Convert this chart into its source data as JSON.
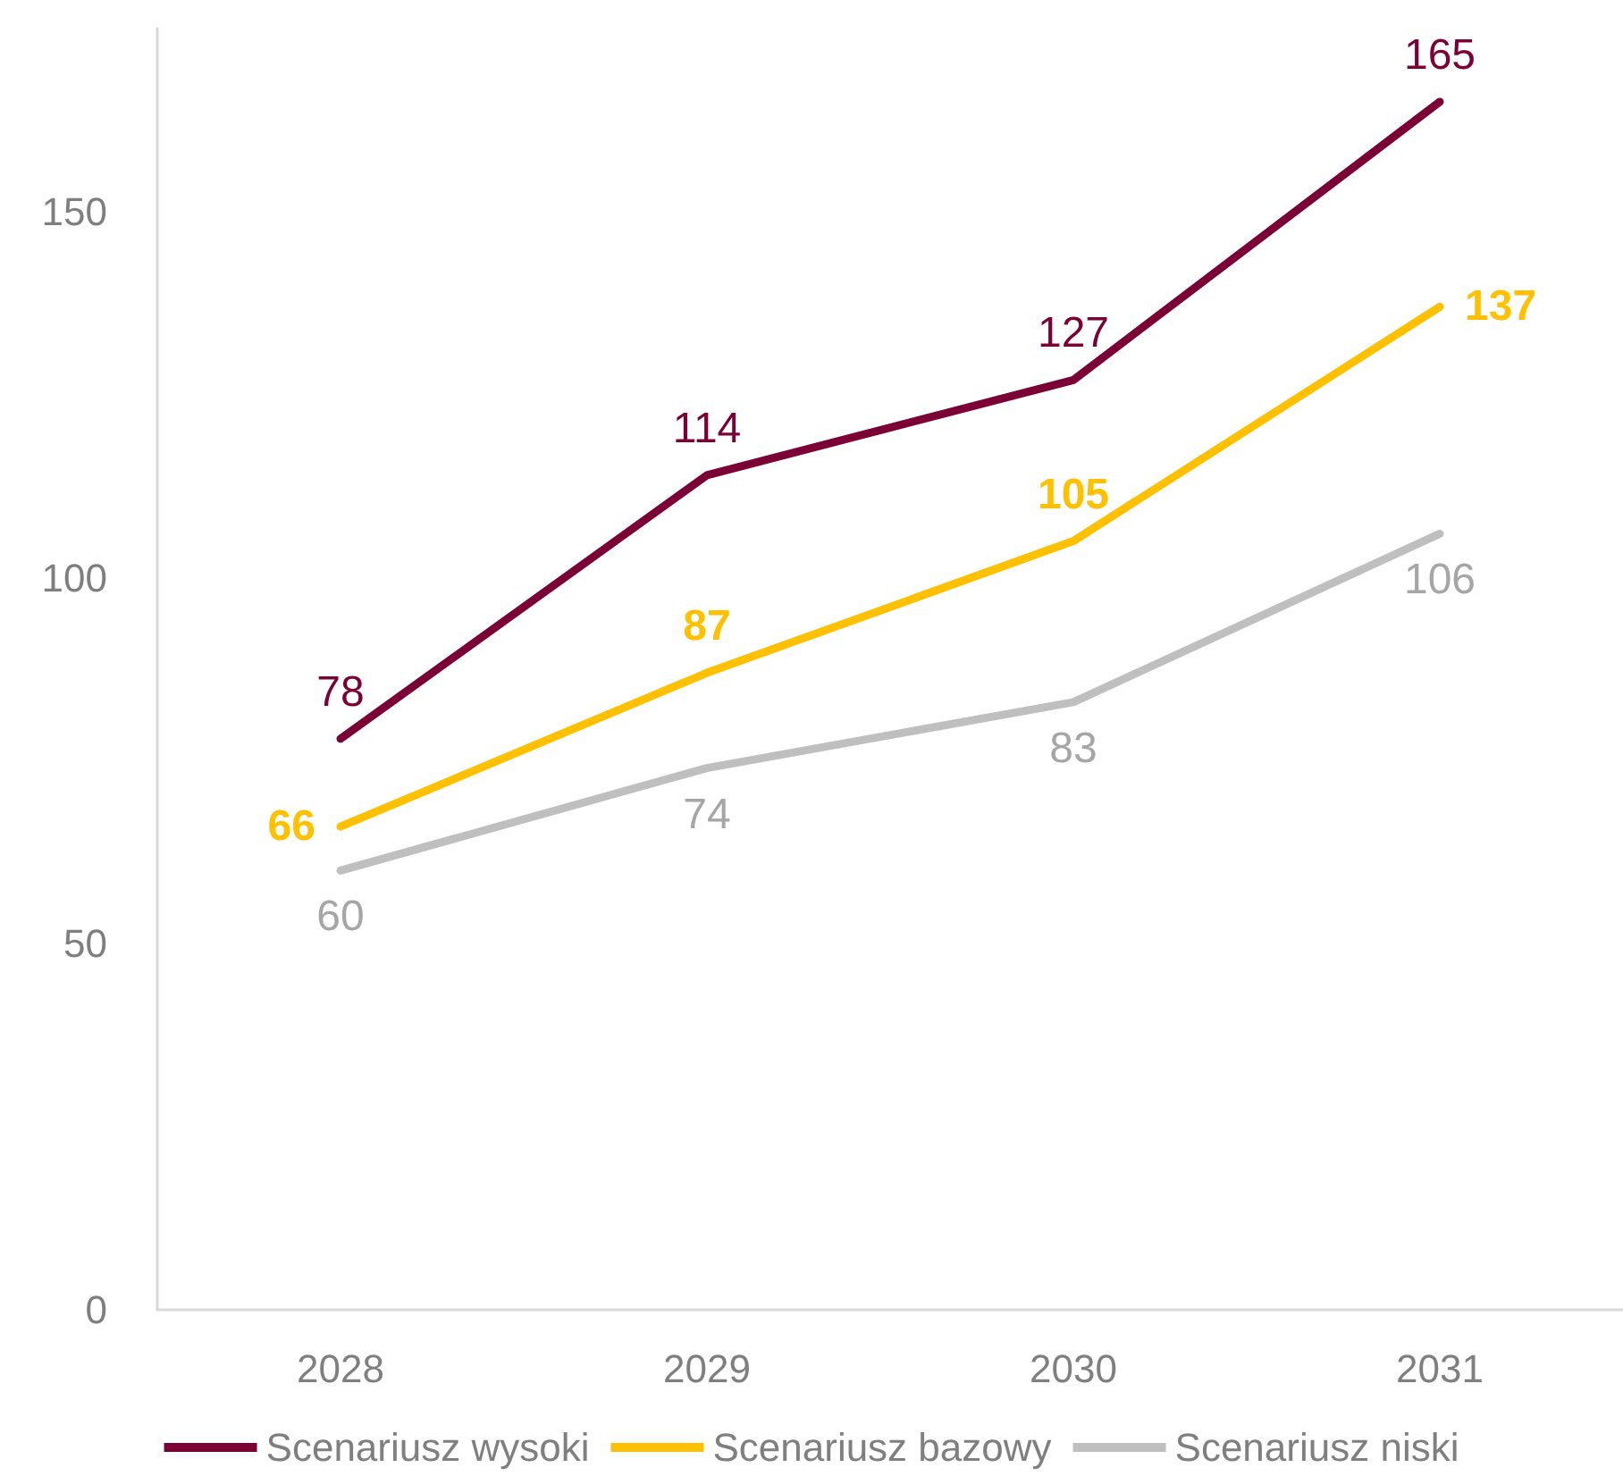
{
  "chart_data": {
    "type": "line",
    "categories": [
      "2028",
      "2029",
      "2030",
      "2031"
    ],
    "series": [
      {
        "name": "Scenariusz wysoki",
        "color": "#7b0035",
        "values": [
          78,
          114,
          127,
          165
        ]
      },
      {
        "name": "Scenariusz bazowy",
        "color": "#ffc000",
        "values": [
          66,
          87,
          105,
          137
        ]
      },
      {
        "name": "Scenariusz niski",
        "color": "#bfbfbf",
        "values": [
          60,
          74,
          83,
          106
        ]
      }
    ],
    "ylim": [
      0,
      175
    ],
    "yticks": [
      0,
      50,
      100,
      150
    ],
    "grid": false,
    "legend": "bottom",
    "data_labels": true,
    "marker": "none",
    "line_style": "solid"
  }
}
